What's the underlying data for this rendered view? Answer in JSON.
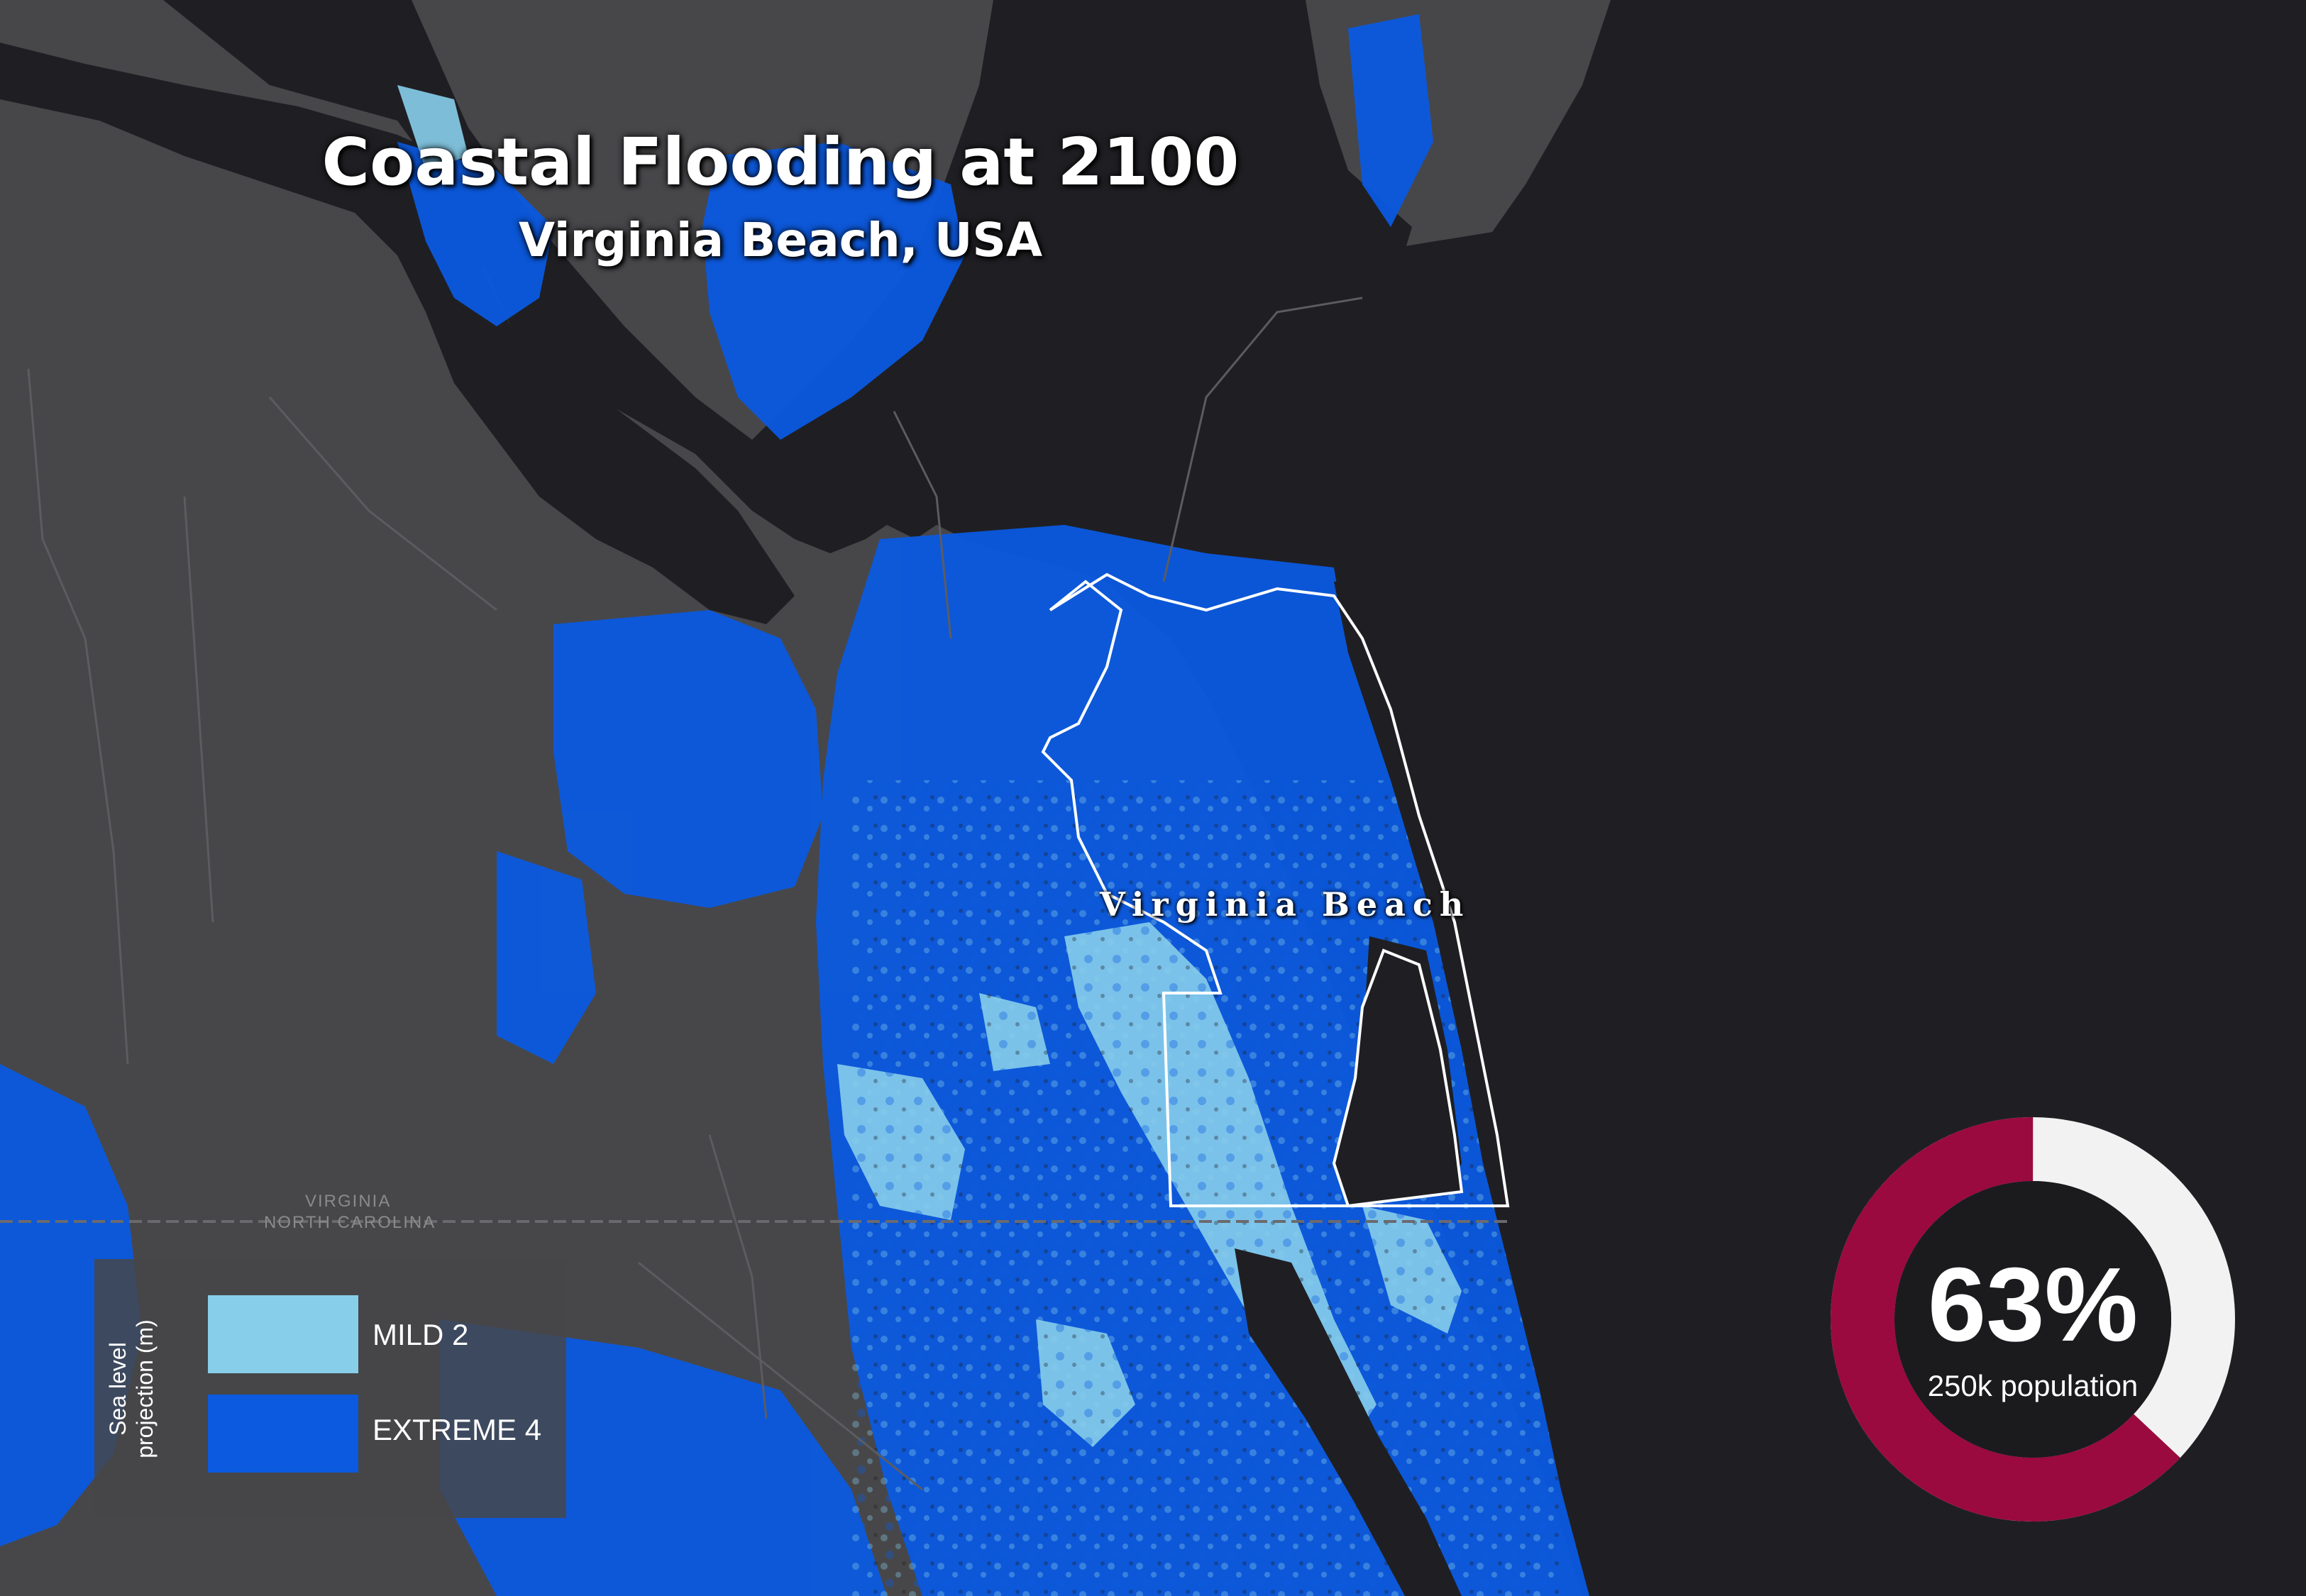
{
  "title": "Coastal Flooding at 2100",
  "subtitle": "Virginia Beach, USA",
  "city_label": "Virginia Beach",
  "state_border": {
    "north": "VIRGINIA",
    "south": "NORTH CAROLINA"
  },
  "legend": {
    "axis_title": "Sea level projection (m)",
    "axis_line1": "Sea level",
    "axis_line2": "projection (m)",
    "items": [
      {
        "label": "MILD",
        "value": "2",
        "color": "#87ceeb"
      },
      {
        "label": "EXTREME",
        "value": "4",
        "color": "#0b5ae0"
      }
    ]
  },
  "stat": {
    "percent_text": "63%",
    "percent_value": 63,
    "population_text": "250k population",
    "colors": {
      "affected": "#9a0a3e",
      "remaining": "#f2f2f2",
      "center": "#1b1b1e"
    }
  },
  "colors": {
    "water": "#1f1f23",
    "land": "#47474a",
    "flood_mild": "#87ceeb",
    "flood_extreme": "#0b5ae0",
    "boundary": "#ffffff"
  }
}
